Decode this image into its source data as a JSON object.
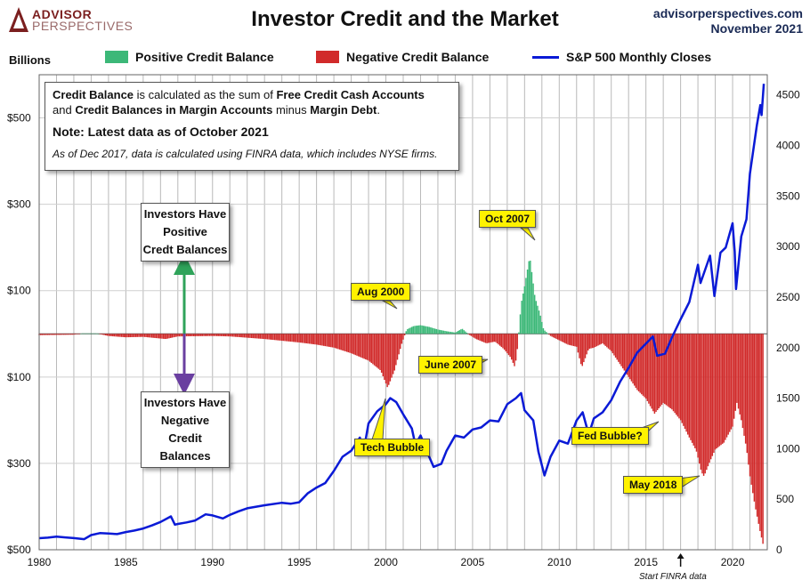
{
  "header": {
    "title": "Investor Credit and the Market",
    "logo_top": "ADVISOR",
    "logo_bottom": "PERSPECTIVES",
    "site": "advisorperspectives.com",
    "date": "November 2021"
  },
  "units_label": "Billions",
  "legend": {
    "positive": "Positive Credit Balance",
    "negative": "Negative Credit Balance",
    "sp500": "S&P 500 Monthly Closes"
  },
  "colors": {
    "positive": "#3cb878",
    "negative": "#d12a2a",
    "sp500": "#0a1ad6",
    "callout": "#fff200"
  },
  "infobox": {
    "line1_b1": "Credit Balance",
    "line1_t1": " is calculated as the sum of ",
    "line1_b2": "Free Credit Cash Accounts",
    "line2_t1": "and ",
    "line2_b1": "Credit Balances in Margin Accounts",
    "line2_t2": " minus ",
    "line2_b2": "Margin Debt",
    "line2_t3": ".",
    "note": "Note: Latest data as of October 2021",
    "finra": "As of Dec 2017, data is calculated using FINRA data, which includes NYSE firms."
  },
  "side_boxes": {
    "positive": [
      "Investors Have",
      "Positive",
      "Credt Balances"
    ],
    "negative": [
      "Investors Have",
      "Negative",
      "Credit Balances"
    ]
  },
  "callouts": {
    "oct2007": "Oct 2007",
    "aug2000": "Aug 2000",
    "june2007": "June 2007",
    "tech_bubble": "Tech Bubble",
    "fed_bubble": "Fed Bubble?",
    "may2018": "May 2018"
  },
  "finra_note": "Start FINRA data",
  "chart_data": {
    "type": "bar",
    "title": "Investor Credit and the Market",
    "x_range": [
      1980,
      2022
    ],
    "x_ticks": [
      "1980",
      "1985",
      "1990",
      "1995",
      "2000",
      "2005",
      "2010",
      "2015",
      "2020"
    ],
    "y_left": {
      "label": "Billions",
      "range": [
        -500,
        600
      ],
      "tick_values": [
        500,
        300,
        100,
        -100,
        -300,
        -500
      ],
      "tick_labels": [
        "$500",
        "$300",
        "$100",
        "$100",
        "$300",
        "$500"
      ]
    },
    "y_right": {
      "range": [
        0,
        4700
      ],
      "ticks": [
        "0",
        "500",
        "1000",
        "1500",
        "2000",
        "2500",
        "3000",
        "3500",
        "4000",
        "4500"
      ]
    },
    "credit_balance_billions": {
      "name": "Credit Balance",
      "points": [
        [
          1980.0,
          -3
        ],
        [
          1982.0,
          -2
        ],
        [
          1982.5,
          1
        ],
        [
          1983.3,
          1
        ],
        [
          1984.0,
          -5
        ],
        [
          1985.0,
          -8
        ],
        [
          1986.0,
          -7
        ],
        [
          1987.3,
          -12
        ],
        [
          1988.0,
          -6
        ],
        [
          1990.0,
          -5
        ],
        [
          1991.0,
          -6
        ],
        [
          1993.0,
          -12
        ],
        [
          1995.0,
          -20
        ],
        [
          1996.0,
          -25
        ],
        [
          1997.0,
          -32
        ],
        [
          1998.0,
          -45
        ],
        [
          1999.0,
          -62
        ],
        [
          1999.7,
          -85
        ],
        [
          2000.1,
          -125
        ],
        [
          2000.5,
          -85
        ],
        [
          2000.9,
          -25
        ],
        [
          2001.2,
          10
        ],
        [
          2001.6,
          18
        ],
        [
          2002.0,
          20
        ],
        [
          2002.5,
          16
        ],
        [
          2003.0,
          10
        ],
        [
          2003.5,
          6
        ],
        [
          2004.0,
          3
        ],
        [
          2004.4,
          12
        ],
        [
          2004.8,
          -2
        ],
        [
          2005.2,
          -12
        ],
        [
          2005.8,
          -22
        ],
        [
          2006.3,
          -18
        ],
        [
          2006.8,
          -35
        ],
        [
          2007.2,
          -55
        ],
        [
          2007.45,
          -78
        ],
        [
          2007.6,
          -30
        ],
        [
          2007.8,
          70
        ],
        [
          2008.0,
          110
        ],
        [
          2008.3,
          180
        ],
        [
          2008.6,
          85
        ],
        [
          2008.9,
          45
        ],
        [
          2009.1,
          10
        ],
        [
          2009.5,
          -5
        ],
        [
          2010.0,
          -15
        ],
        [
          2010.5,
          -25
        ],
        [
          2011.0,
          -30
        ],
        [
          2011.3,
          -78
        ],
        [
          2011.7,
          -35
        ],
        [
          2012.0,
          -32
        ],
        [
          2012.5,
          -22
        ],
        [
          2013.0,
          -40
        ],
        [
          2013.5,
          -70
        ],
        [
          2014.0,
          -100
        ],
        [
          2014.5,
          -130
        ],
        [
          2015.0,
          -150
        ],
        [
          2015.5,
          -185
        ],
        [
          2016.0,
          -160
        ],
        [
          2016.5,
          -175
        ],
        [
          2017.0,
          -200
        ],
        [
          2017.5,
          -240
        ],
        [
          2017.9,
          -270
        ],
        [
          2018.2,
          -320
        ],
        [
          2018.35,
          -330
        ],
        [
          2018.7,
          -295
        ],
        [
          2019.0,
          -268
        ],
        [
          2019.5,
          -252
        ],
        [
          2020.0,
          -215
        ],
        [
          2020.25,
          -160
        ],
        [
          2020.5,
          -200
        ],
        [
          2020.8,
          -265
        ],
        [
          2021.0,
          -330
        ],
        [
          2021.3,
          -400
        ],
        [
          2021.6,
          -460
        ],
        [
          2021.8,
          -495
        ]
      ]
    },
    "sp500": {
      "name": "S&P 500 Monthly Closes",
      "points": [
        [
          1980.0,
          114
        ],
        [
          1980.5,
          120
        ],
        [
          1981.0,
          130
        ],
        [
          1981.5,
          122
        ],
        [
          1982.0,
          115
        ],
        [
          1982.6,
          105
        ],
        [
          1983.0,
          145
        ],
        [
          1983.5,
          165
        ],
        [
          1984.0,
          160
        ],
        [
          1984.5,
          155
        ],
        [
          1985.0,
          175
        ],
        [
          1985.5,
          190
        ],
        [
          1986.0,
          210
        ],
        [
          1986.5,
          240
        ],
        [
          1987.0,
          275
        ],
        [
          1987.6,
          330
        ],
        [
          1987.83,
          248
        ],
        [
          1988.0,
          255
        ],
        [
          1988.5,
          270
        ],
        [
          1989.0,
          290
        ],
        [
          1989.6,
          350
        ],
        [
          1990.0,
          340
        ],
        [
          1990.6,
          310
        ],
        [
          1991.0,
          345
        ],
        [
          1991.5,
          380
        ],
        [
          1992.0,
          410
        ],
        [
          1993.0,
          440
        ],
        [
          1994.0,
          465
        ],
        [
          1994.5,
          455
        ],
        [
          1995.0,
          470
        ],
        [
          1995.5,
          560
        ],
        [
          1996.0,
          615
        ],
        [
          1996.5,
          660
        ],
        [
          1997.0,
          780
        ],
        [
          1997.5,
          920
        ],
        [
          1998.0,
          980
        ],
        [
          1998.5,
          1110
        ],
        [
          1998.7,
          960
        ],
        [
          1999.0,
          1250
        ],
        [
          1999.5,
          1370
        ],
        [
          2000.0,
          1440
        ],
        [
          2000.25,
          1500
        ],
        [
          2000.6,
          1460
        ],
        [
          2001.0,
          1340
        ],
        [
          2001.5,
          1200
        ],
        [
          2001.7,
          1040
        ],
        [
          2002.0,
          1130
        ],
        [
          2002.5,
          920
        ],
        [
          2002.75,
          820
        ],
        [
          2003.2,
          850
        ],
        [
          2003.5,
          980
        ],
        [
          2004.0,
          1130
        ],
        [
          2004.5,
          1110
        ],
        [
          2005.0,
          1190
        ],
        [
          2005.5,
          1210
        ],
        [
          2006.0,
          1280
        ],
        [
          2006.5,
          1270
        ],
        [
          2007.0,
          1440
        ],
        [
          2007.5,
          1500
        ],
        [
          2007.8,
          1550
        ],
        [
          2008.0,
          1380
        ],
        [
          2008.5,
          1280
        ],
        [
          2008.8,
          970
        ],
        [
          2009.15,
          735
        ],
        [
          2009.5,
          920
        ],
        [
          2010.0,
          1080
        ],
        [
          2010.5,
          1050
        ],
        [
          2011.0,
          1280
        ],
        [
          2011.35,
          1360
        ],
        [
          2011.7,
          1140
        ],
        [
          2012.0,
          1300
        ],
        [
          2012.5,
          1360
        ],
        [
          2013.0,
          1480
        ],
        [
          2013.5,
          1660
        ],
        [
          2014.0,
          1800
        ],
        [
          2014.5,
          1950
        ],
        [
          2015.0,
          2040
        ],
        [
          2015.4,
          2110
        ],
        [
          2015.65,
          1920
        ],
        [
          2016.1,
          1940
        ],
        [
          2016.5,
          2100
        ],
        [
          2017.0,
          2280
        ],
        [
          2017.5,
          2450
        ],
        [
          2018.0,
          2820
        ],
        [
          2018.15,
          2640
        ],
        [
          2018.7,
          2910
        ],
        [
          2018.95,
          2510
        ],
        [
          2019.3,
          2940
        ],
        [
          2019.6,
          2990
        ],
        [
          2020.0,
          3230
        ],
        [
          2020.12,
          2950
        ],
        [
          2020.2,
          2580
        ],
        [
          2020.5,
          3100
        ],
        [
          2020.8,
          3270
        ],
        [
          2021.0,
          3720
        ],
        [
          2021.4,
          4200
        ],
        [
          2021.6,
          4400
        ],
        [
          2021.67,
          4300
        ],
        [
          2021.8,
          4610
        ]
      ]
    }
  }
}
